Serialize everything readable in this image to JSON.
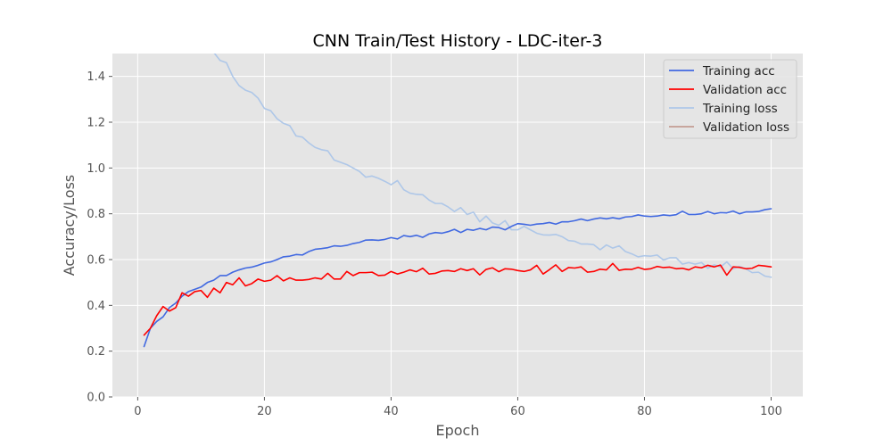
{
  "chart_data": {
    "type": "line",
    "title": "CNN Train/Test History -  LDC-iter-3",
    "xlabel": "Epoch",
    "ylabel": "Accuracy/Loss",
    "xlim": [
      -4,
      105
    ],
    "ylim": [
      0,
      1.5
    ],
    "xticks": [
      0,
      20,
      40,
      60,
      80,
      100
    ],
    "yticks": [
      0.0,
      0.2,
      0.4,
      0.6,
      0.8,
      1.0,
      1.2,
      1.4
    ],
    "xtick_labels": [
      "0",
      "20",
      "40",
      "60",
      "80",
      "100"
    ],
    "ytick_labels": [
      "0.0",
      "0.2",
      "0.4",
      "0.6",
      "0.8",
      "1.0",
      "1.2",
      "1.4"
    ],
    "grid": true,
    "legend_position": "top-right",
    "background": "#e5e5e5",
    "series": [
      {
        "name": "Training acc",
        "color": "#4169e1",
        "x": [
          1,
          2,
          3,
          4,
          5,
          6,
          7,
          8,
          9,
          10,
          11,
          12,
          13,
          14,
          15,
          16,
          17,
          18,
          19,
          20,
          21,
          22,
          23,
          24,
          25,
          26,
          27,
          28,
          29,
          30,
          31,
          32,
          33,
          34,
          35,
          36,
          37,
          38,
          39,
          40,
          41,
          42,
          43,
          44,
          45,
          46,
          47,
          48,
          49,
          50,
          51,
          52,
          53,
          54,
          55,
          56,
          57,
          58,
          59,
          60,
          61,
          62,
          63,
          64,
          65,
          66,
          67,
          68,
          69,
          70,
          71,
          72,
          73,
          74,
          75,
          76,
          77,
          78,
          79,
          80,
          81,
          82,
          83,
          84,
          85,
          86,
          87,
          88,
          89,
          90,
          91,
          92,
          93,
          94,
          95,
          96,
          97,
          98,
          99,
          100
        ],
        "y": [
          0.22,
          0.3,
          0.33,
          0.35,
          0.39,
          0.41,
          0.44,
          0.46,
          0.47,
          0.48,
          0.5,
          0.51,
          0.53,
          0.53,
          0.545,
          0.555,
          0.563,
          0.567,
          0.575,
          0.585,
          0.59,
          0.6,
          0.612,
          0.615,
          0.622,
          0.62,
          0.635,
          0.645,
          0.648,
          0.652,
          0.66,
          0.658,
          0.662,
          0.67,
          0.675,
          0.685,
          0.686,
          0.684,
          0.688,
          0.696,
          0.69,
          0.705,
          0.7,
          0.706,
          0.697,
          0.712,
          0.718,
          0.715,
          0.722,
          0.732,
          0.718,
          0.732,
          0.728,
          0.736,
          0.73,
          0.742,
          0.74,
          0.73,
          0.745,
          0.757,
          0.754,
          0.75,
          0.755,
          0.757,
          0.762,
          0.755,
          0.765,
          0.765,
          0.77,
          0.777,
          0.77,
          0.777,
          0.782,
          0.778,
          0.783,
          0.778,
          0.786,
          0.788,
          0.795,
          0.79,
          0.788,
          0.79,
          0.795,
          0.792,
          0.796,
          0.811,
          0.797,
          0.797,
          0.8,
          0.81,
          0.8,
          0.805,
          0.804,
          0.812,
          0.8,
          0.808,
          0.808,
          0.81,
          0.818,
          0.822
        ]
      },
      {
        "name": "Validation acc",
        "color": "#ff0000",
        "x": [
          1,
          2,
          3,
          4,
          5,
          6,
          7,
          8,
          9,
          10,
          11,
          12,
          13,
          14,
          15,
          16,
          17,
          18,
          19,
          20,
          21,
          22,
          23,
          24,
          25,
          26,
          27,
          28,
          29,
          30,
          31,
          32,
          33,
          34,
          35,
          36,
          37,
          38,
          39,
          40,
          41,
          42,
          43,
          44,
          45,
          46,
          47,
          48,
          49,
          50,
          51,
          52,
          53,
          54,
          55,
          56,
          57,
          58,
          59,
          60,
          61,
          62,
          63,
          64,
          65,
          66,
          67,
          68,
          69,
          70,
          71,
          72,
          73,
          74,
          75,
          76,
          77,
          78,
          79,
          80,
          81,
          82,
          83,
          84,
          85,
          86,
          87,
          88,
          89,
          90,
          91,
          92,
          93,
          94,
          95,
          96,
          97,
          98,
          99,
          100
        ],
        "y": [
          0.27,
          0.3,
          0.355,
          0.395,
          0.375,
          0.39,
          0.455,
          0.44,
          0.46,
          0.465,
          0.435,
          0.475,
          0.455,
          0.5,
          0.49,
          0.52,
          0.485,
          0.495,
          0.515,
          0.505,
          0.51,
          0.53,
          0.507,
          0.52,
          0.51,
          0.51,
          0.513,
          0.52,
          0.515,
          0.54,
          0.515,
          0.515,
          0.548,
          0.53,
          0.543,
          0.543,
          0.545,
          0.53,
          0.532,
          0.548,
          0.537,
          0.545,
          0.555,
          0.547,
          0.562,
          0.537,
          0.54,
          0.55,
          0.552,
          0.548,
          0.56,
          0.552,
          0.56,
          0.533,
          0.557,
          0.564,
          0.547,
          0.56,
          0.558,
          0.552,
          0.548,
          0.555,
          0.575,
          0.537,
          0.556,
          0.577,
          0.548,
          0.565,
          0.563,
          0.568,
          0.545,
          0.548,
          0.558,
          0.555,
          0.583,
          0.553,
          0.558,
          0.557,
          0.566,
          0.557,
          0.56,
          0.57,
          0.565,
          0.567,
          0.56,
          0.562,
          0.555,
          0.568,
          0.564,
          0.575,
          0.568,
          0.576,
          0.532,
          0.568,
          0.566,
          0.56,
          0.562,
          0.575,
          0.572,
          0.568
        ]
      },
      {
        "name": "Training loss",
        "color": "#aec7e8",
        "x": [
          12,
          13,
          14,
          15,
          16,
          17,
          18,
          19,
          20,
          21,
          22,
          23,
          24,
          25,
          26,
          27,
          28,
          29,
          30,
          31,
          32,
          33,
          34,
          35,
          36,
          37,
          38,
          39,
          40,
          41,
          42,
          43,
          44,
          45,
          46,
          47,
          48,
          49,
          50,
          51,
          52,
          53,
          54,
          55,
          56,
          57,
          58,
          59,
          60,
          61,
          62,
          63,
          64,
          65,
          66,
          67,
          68,
          69,
          70,
          71,
          72,
          73,
          74,
          75,
          76,
          77,
          78,
          79,
          80,
          81,
          82,
          83,
          84,
          85,
          86,
          87,
          88,
          89,
          90,
          91,
          92,
          93,
          94,
          95,
          96,
          97,
          98,
          99,
          100
        ],
        "y": [
          1.505,
          1.47,
          1.46,
          1.4,
          1.36,
          1.34,
          1.33,
          1.305,
          1.26,
          1.25,
          1.215,
          1.195,
          1.185,
          1.14,
          1.135,
          1.11,
          1.09,
          1.08,
          1.075,
          1.035,
          1.025,
          1.015,
          1.0,
          0.985,
          0.96,
          0.965,
          0.955,
          0.942,
          0.927,
          0.945,
          0.905,
          0.89,
          0.885,
          0.883,
          0.86,
          0.845,
          0.845,
          0.83,
          0.81,
          0.827,
          0.797,
          0.807,
          0.765,
          0.79,
          0.76,
          0.75,
          0.77,
          0.73,
          0.73,
          0.745,
          0.73,
          0.715,
          0.708,
          0.707,
          0.71,
          0.7,
          0.683,
          0.68,
          0.668,
          0.668,
          0.665,
          0.643,
          0.664,
          0.65,
          0.66,
          0.635,
          0.625,
          0.612,
          0.617,
          0.615,
          0.62,
          0.598,
          0.608,
          0.608,
          0.58,
          0.587,
          0.58,
          0.587,
          0.562,
          0.577,
          0.568,
          0.59,
          0.56,
          0.57,
          0.56,
          0.543,
          0.545,
          0.528,
          0.523
        ]
      },
      {
        "name": "Validation loss",
        "color": "#c49c94",
        "x": [],
        "y": []
      }
    ]
  }
}
